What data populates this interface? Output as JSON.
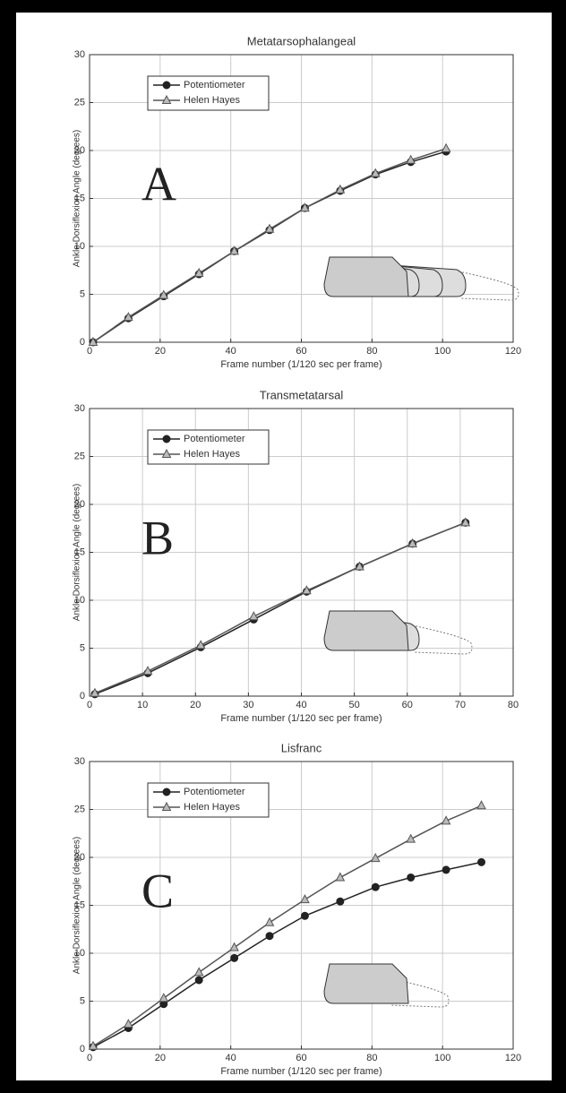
{
  "chart_data": [
    {
      "type": "line",
      "title": "Metatarsophalangeal",
      "annotation": "A",
      "x_label": "Frame number (1/120 sec per frame)",
      "y_label": "Ankle Dorsiflexion Angle (degrees)",
      "xlim": [
        0,
        120
      ],
      "xticks": [
        0,
        20,
        40,
        60,
        80,
        100,
        120
      ],
      "ylim": [
        0,
        30
      ],
      "yticks": [
        0,
        5,
        10,
        15,
        20,
        25,
        30
      ],
      "grid": true,
      "legend": "upper left",
      "x": [
        1,
        11,
        21,
        31,
        41,
        51,
        61,
        71,
        81,
        91,
        101
      ],
      "series": [
        {
          "name": "Potentiometer",
          "color": "#222222",
          "marker": "circle",
          "values": [
            0,
            2.5,
            4.8,
            7.1,
            9.5,
            11.7,
            14,
            15.8,
            17.5,
            18.8,
            19.9
          ]
        },
        {
          "name": "Helen Hayes",
          "color": "#555555",
          "marker": "triangle",
          "values": [
            0,
            2.6,
            4.9,
            7.2,
            9.5,
            11.8,
            14,
            15.9,
            17.6,
            19,
            20.2
          ]
        }
      ]
    },
    {
      "type": "line",
      "title": "Transmetatarsal",
      "annotation": "B",
      "x_label": "Frame number (1/120 sec per frame)",
      "y_label": "Ankle Dorsiflexion Angle (degrees)",
      "xlim": [
        0,
        80
      ],
      "xticks": [
        0,
        10,
        20,
        30,
        40,
        50,
        60,
        70,
        80
      ],
      "ylim": [
        0,
        30
      ],
      "yticks": [
        0,
        5,
        10,
        15,
        20,
        25,
        30
      ],
      "grid": true,
      "legend": "upper left",
      "x": [
        1,
        11,
        21,
        31,
        41,
        51,
        61,
        71
      ],
      "series": [
        {
          "name": "Potentiometer",
          "color": "#222222",
          "marker": "circle",
          "values": [
            0.2,
            2.4,
            5.1,
            8,
            10.9,
            13.5,
            15.9,
            18.1
          ]
        },
        {
          "name": "Helen Hayes",
          "color": "#555555",
          "marker": "triangle",
          "values": [
            0.3,
            2.6,
            5.3,
            8.3,
            11,
            13.5,
            15.9,
            18.1
          ]
        }
      ]
    },
    {
      "type": "line",
      "title": "Lisfranc",
      "annotation": "C",
      "x_label": "Frame number (1/120 sec per frame)",
      "y_label": "Ankle Dorsiflexion Angle (degrees)",
      "xlim": [
        0,
        120
      ],
      "xticks": [
        0,
        20,
        40,
        60,
        80,
        100,
        120
      ],
      "ylim": [
        0,
        30
      ],
      "yticks": [
        0,
        5,
        10,
        15,
        20,
        25,
        30
      ],
      "grid": true,
      "legend": "upper left",
      "x": [
        1,
        11,
        21,
        31,
        41,
        51,
        61,
        71,
        81,
        91,
        101,
        111
      ],
      "series": [
        {
          "name": "Potentiometer",
          "color": "#222222",
          "marker": "circle",
          "values": [
            0.2,
            2.2,
            4.7,
            7.2,
            9.5,
            11.8,
            13.9,
            15.4,
            16.9,
            17.9,
            18.7,
            19.5
          ]
        },
        {
          "name": "Helen Hayes",
          "color": "#555555",
          "marker": "triangle",
          "values": [
            0.3,
            2.6,
            5.3,
            8,
            10.6,
            13.2,
            15.6,
            17.9,
            19.9,
            21.9,
            23.8,
            25.4
          ]
        }
      ]
    }
  ]
}
